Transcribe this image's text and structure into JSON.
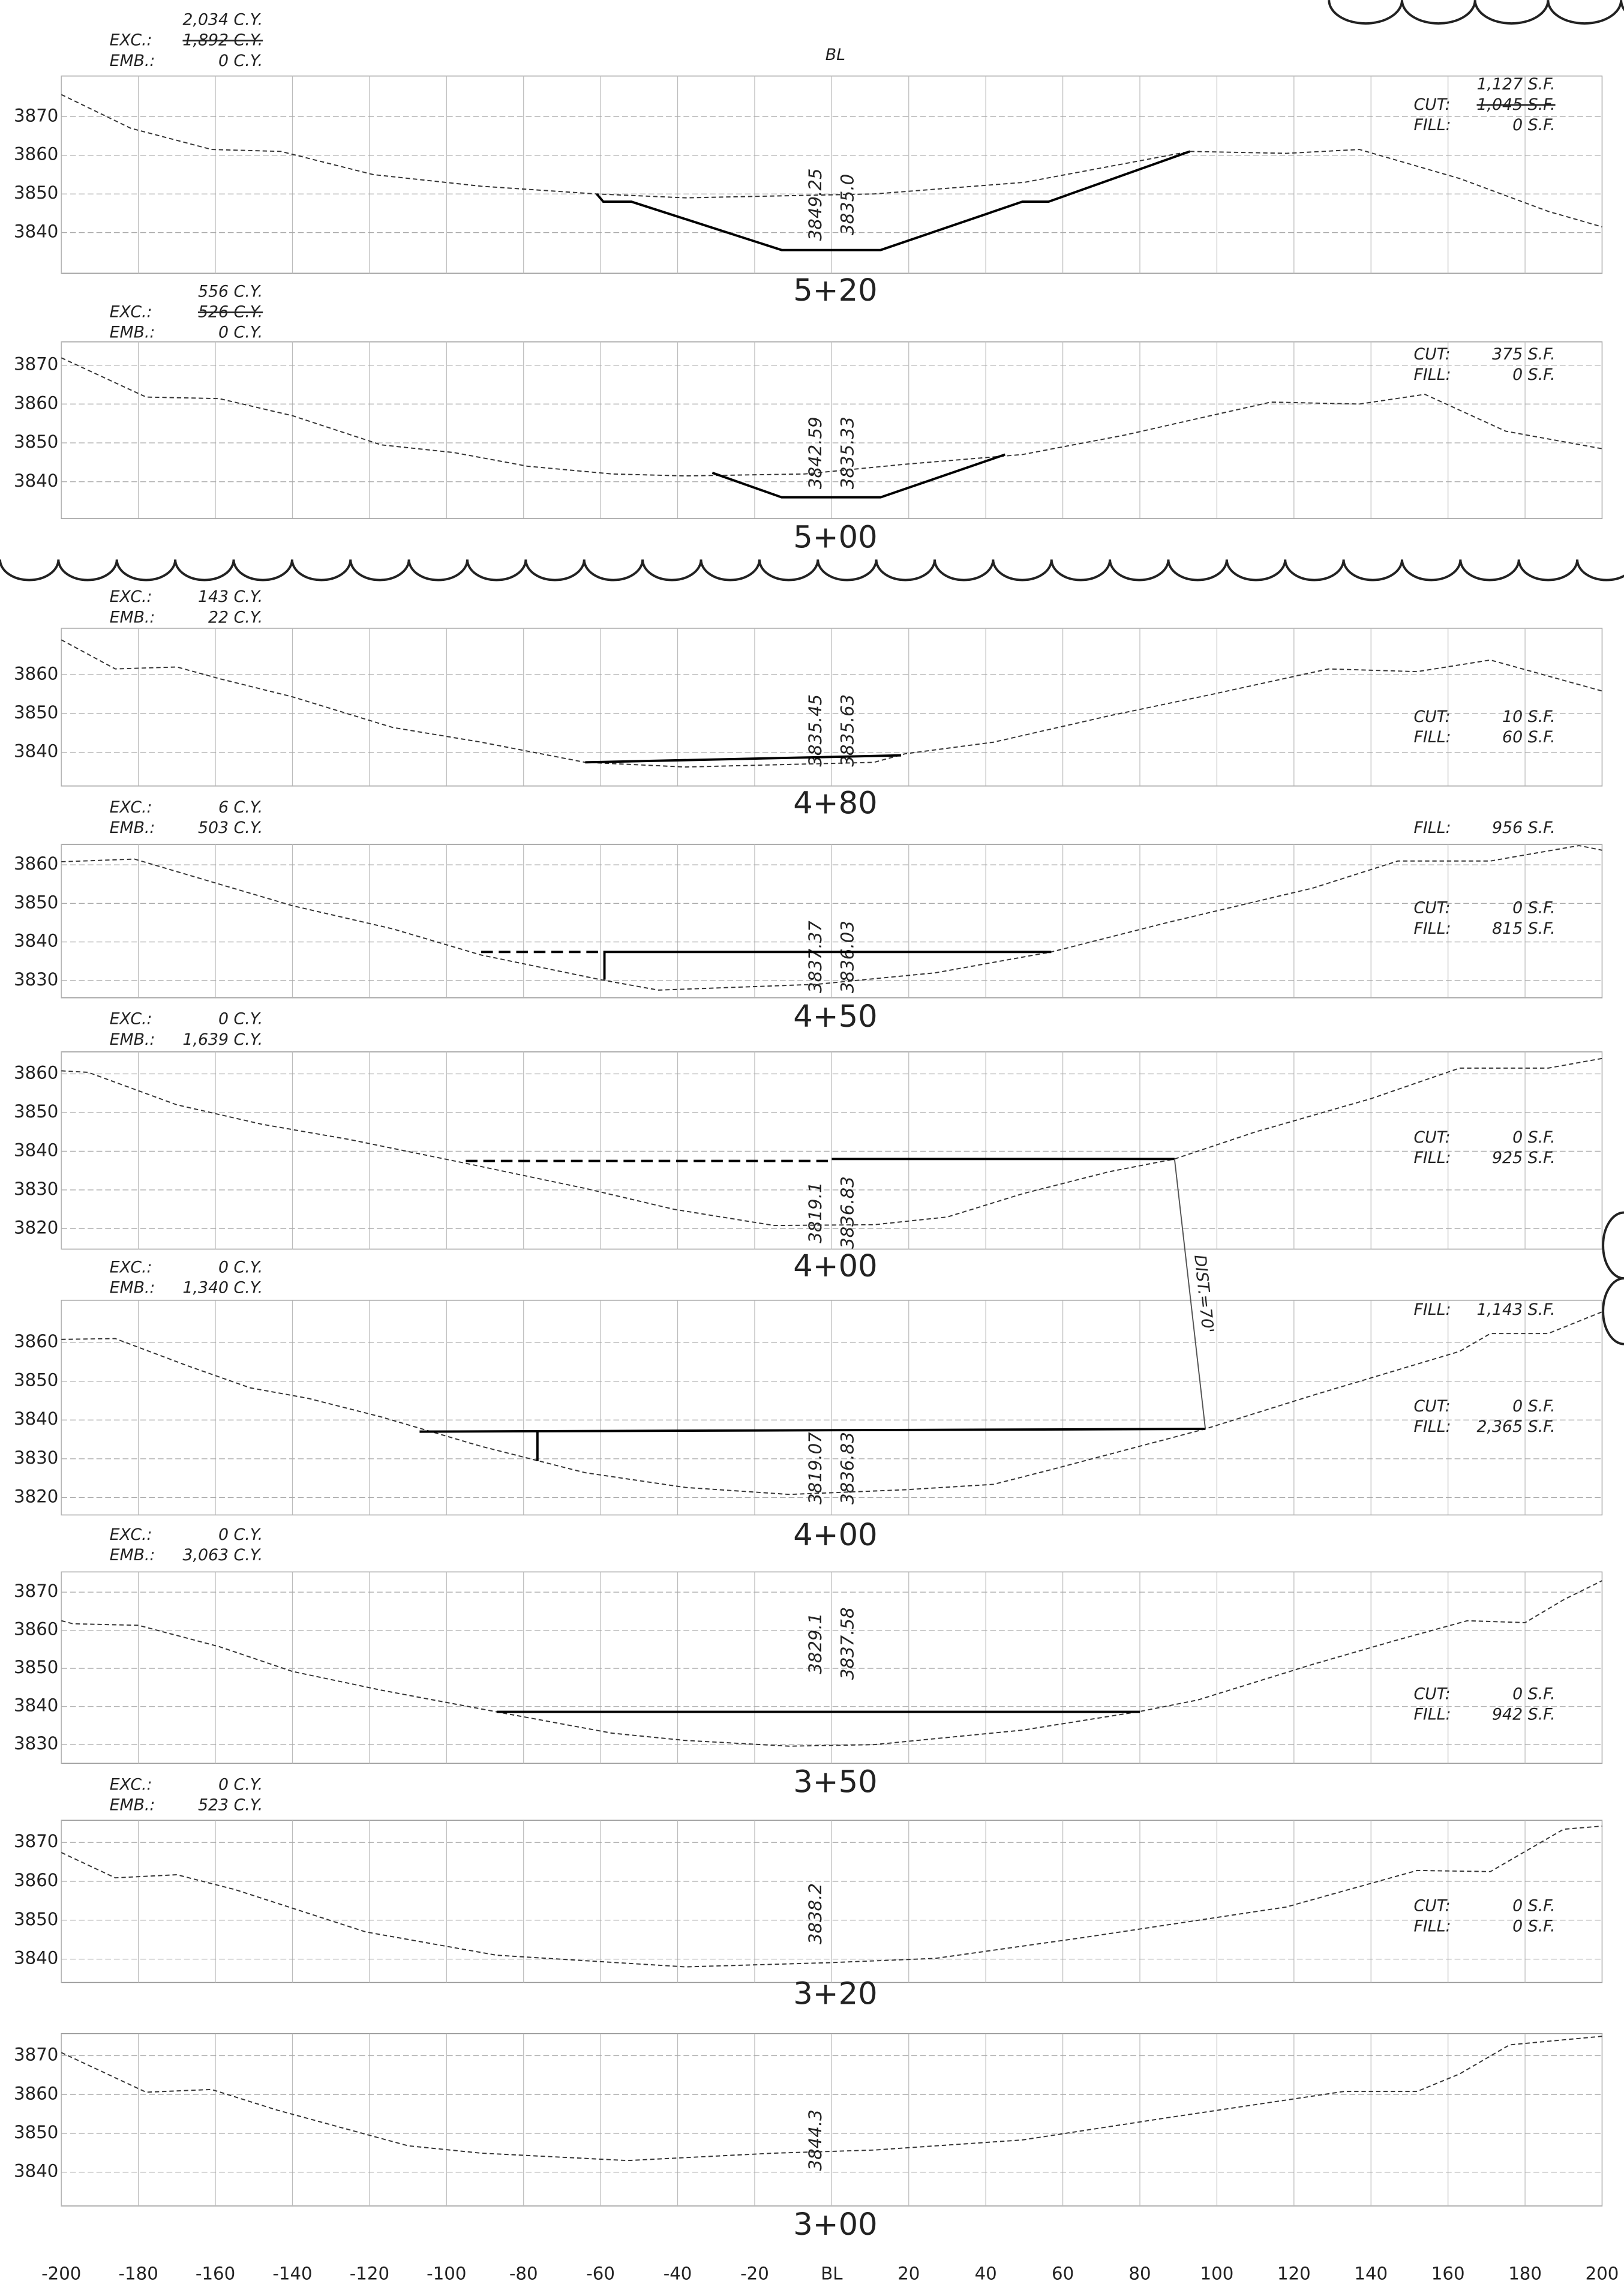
{
  "chart_data": [
    {
      "type": "line",
      "title": "5+20",
      "center_label": "BL",
      "xlim": [
        -200,
        200
      ],
      "ylim": [
        3829.5,
        3880.5
      ],
      "yticks": [
        3840,
        3850,
        3860,
        3870
      ],
      "left_notes": [
        {
          "value": "2,034 C.Y."
        },
        {
          "label": "EXC.:",
          "value": "1,892 C.Y.",
          "struck": true
        },
        {
          "label": "EMB.:",
          "value": "0 C.Y."
        }
      ],
      "right_notes": [
        {
          "value": "1,127 S.F."
        },
        {
          "label": "CUT:",
          "value": "1,045 S.F.",
          "struck": true
        },
        {
          "label": "FILL:",
          "value": "0 S.F."
        }
      ],
      "elevations": [
        "3849.25",
        "3835.0"
      ],
      "series": [
        {
          "dash": true,
          "color": "#333",
          "x": [
            -200,
            -182,
            -161,
            -143,
            -119,
            -91,
            -61,
            -38,
            11,
            50,
            93,
            118,
            137,
            163,
            186,
            200
          ],
          "values": [
            3875.7,
            3867,
            3861.5,
            3861,
            3855,
            3852,
            3850,
            3849,
            3850,
            3853,
            3861,
            3860.5,
            3861.5,
            3854,
            3845.5,
            3841.5
          ]
        },
        {
          "dash": false,
          "color": "#000",
          "x": [
            -61,
            -59.3,
            -52,
            -13,
            12.7,
            49.5,
            56.3,
            93
          ],
          "values": [
            3850,
            3848,
            3848,
            3835.5,
            3835.5,
            3848,
            3848,
            3861
          ]
        }
      ]
    },
    {
      "type": "line",
      "title": "5+00",
      "xlim": [
        -200,
        200
      ],
      "ylim": [
        3830.5,
        3876
      ],
      "yticks": [
        3840,
        3850,
        3860,
        3870
      ],
      "left_notes": [
        {
          "value": "556 C.Y."
        },
        {
          "label": "EXC.:",
          "value": "526 C.Y.",
          "struck": true
        },
        {
          "label": "EMB.:",
          "value": "0 C.Y."
        }
      ],
      "right_notes": [
        {
          "label": "CUT:",
          "value": "375 S.F."
        },
        {
          "label": "FILL:",
          "value": "0 S.F."
        }
      ],
      "elevations": [
        "3842.59",
        "3835.33"
      ],
      "series": [
        {
          "dash": true,
          "color": "#333",
          "x": [
            -200,
            -178,
            -159,
            -140,
            -117,
            -98,
            -79,
            -57,
            -38,
            -7,
            19,
            49.5,
            76,
            114,
            137,
            154,
            175,
            200
          ],
          "values": [
            3871.9,
            3861.8,
            3861.4,
            3857,
            3849.5,
            3847.5,
            3844,
            3842,
            3841.5,
            3842,
            3844.5,
            3847,
            3852,
            3860.5,
            3860,
            3862.5,
            3853,
            3848.5
          ]
        },
        {
          "dash": false,
          "color": "#000",
          "x": [
            -31,
            -13,
            12.7,
            45
          ],
          "values": [
            3842.3,
            3836,
            3836,
            3847
          ]
        }
      ]
    },
    {
      "type": "line",
      "title": "4+80",
      "xlim": [
        -200,
        200
      ],
      "ylim": [
        3831.3,
        3872
      ],
      "yticks": [
        3840,
        3850,
        3860
      ],
      "left_notes": [
        {
          "label": "EXC.:",
          "value": "143 C.Y."
        },
        {
          "label": "EMB.:",
          "value": "22 C.Y."
        }
      ],
      "right_notes": [
        {
          "label": "CUT:",
          "value": "10 S.F."
        },
        {
          "label": "FILL:",
          "value": "60 S.F."
        }
      ],
      "elevations": [
        "3835.45",
        "3835.63"
      ],
      "series": [
        {
          "dash": true,
          "color": "#333",
          "x": [
            -200,
            -186,
            -170,
            -159,
            -140,
            -114,
            -91,
            -64,
            -38,
            11,
            19,
            42,
            72,
            99,
            129,
            152,
            171,
            200
          ],
          "values": [
            3869,
            3861.5,
            3862,
            3859,
            3854.3,
            3846.4,
            3842.6,
            3837.4,
            3836.2,
            3837.4,
            3839.6,
            3842.6,
            3849.4,
            3855,
            3861.5,
            3860.8,
            3863.8,
            3855.8
          ]
        },
        {
          "dash": false,
          "color": "#000",
          "x": [
            -64,
            18
          ],
          "values": [
            3837.4,
            3839.2
          ]
        }
      ]
    },
    {
      "type": "line",
      "title": "4+50",
      "xlim": [
        -200,
        200
      ],
      "ylim": [
        3825.5,
        3865.3
      ],
      "yticks": [
        3830,
        3840,
        3850,
        3860
      ],
      "left_notes": [
        {
          "label": "EXC.:",
          "value": "6 C.Y."
        },
        {
          "label": "EMB.:",
          "value": "503 C.Y."
        }
      ],
      "right_notes": [
        {
          "label": "FILL:",
          "value": "956 S.F."
        },
        {
          "label": "CUT:",
          "value": "0 S.F."
        },
        {
          "label": "FILL:",
          "value": "815 S.F."
        }
      ],
      "elevations": [
        "3837.37",
        "3836.03"
      ],
      "series": [
        {
          "dash": true,
          "color": "#333",
          "x": [
            -200,
            -181,
            -159,
            -140,
            -114,
            -91,
            -60,
            -45,
            -4,
            27,
            57,
            87,
            125,
            147,
            171,
            194,
            200
          ],
          "values": [
            3860.8,
            3861.5,
            3855,
            3849.4,
            3843.4,
            3836.6,
            3830.2,
            3827.5,
            3829,
            3832,
            3837.4,
            3845,
            3854,
            3861,
            3861,
            3865,
            3863.8
          ]
        },
        {
          "dash": false,
          "color": "#000",
          "x": [
            -59,
            -59,
            57
          ],
          "values": [
            3830.2,
            3837.4,
            3837.4
          ]
        },
        {
          "dash": true,
          "long": true,
          "color": "#000",
          "x": [
            -91,
            -59
          ],
          "values": [
            3837.4,
            3837.4
          ]
        }
      ]
    },
    {
      "type": "line",
      "title": "4+00",
      "annotation": "DIST.=70'",
      "xlim": [
        -200,
        200
      ],
      "ylim": [
        3814.7,
        3865.7
      ],
      "yticks": [
        3820,
        3830,
        3840,
        3850,
        3860
      ],
      "left_notes": [
        {
          "label": "EXC.:",
          "value": "0 C.Y."
        },
        {
          "label": "EMB.:",
          "value": "1,639 C.Y."
        }
      ],
      "right_notes": [
        {
          "label": "CUT:",
          "value": "0 S.F."
        },
        {
          "label": "FILL:",
          "value": "925 S.F."
        }
      ],
      "elevations": [
        "3819.1",
        "3836.83"
      ],
      "series": [
        {
          "dash": true,
          "color": "#333",
          "x": [
            -200,
            -193,
            -170,
            -148,
            -125,
            -98,
            -64,
            -41,
            -15,
            11,
            30,
            49.5,
            72,
            89,
            110,
            140,
            163,
            186,
            200
          ],
          "values": [
            3860.8,
            3860.4,
            3852,
            3847,
            3843,
            3837.5,
            3830.4,
            3825,
            3820.8,
            3821,
            3823,
            3829,
            3834.7,
            3838,
            3845,
            3853.6,
            3861.5,
            3861.5,
            3864
          ]
        },
        {
          "dash": false,
          "color": "#000",
          "x": [
            0,
            89
          ],
          "values": [
            3838,
            3838
          ]
        },
        {
          "dash": true,
          "long": true,
          "color": "#000",
          "x": [
            -95,
            0
          ],
          "values": [
            3837.5,
            3837.5
          ]
        }
      ]
    },
    {
      "type": "line",
      "title": "4+00",
      "xlim": [
        -200,
        200
      ],
      "ylim": [
        3815.5,
        3870.9
      ],
      "yticks": [
        3820,
        3830,
        3840,
        3850,
        3860
      ],
      "left_notes": [
        {
          "label": "EXC.:",
          "value": "0 C.Y."
        },
        {
          "label": "EMB.:",
          "value": "1,340 C.Y."
        }
      ],
      "right_notes": [
        {
          "label": "FILL:",
          "value": "1,143 S.F."
        },
        {
          "label": "CUT:",
          "value": "0 S.F."
        },
        {
          "label": "FILL:",
          "value": "2,365 S.F."
        }
      ],
      "elevations": [
        "3819.07",
        "3836.83"
      ],
      "series": [
        {
          "dash": true,
          "color": "#333",
          "x": [
            -200,
            -186,
            -167,
            -151,
            -136,
            -117,
            -91,
            -64,
            -38,
            -11,
            19,
            42,
            57,
            97,
            125,
            163,
            171,
            186,
            200
          ],
          "values": [
            3860.8,
            3861,
            3853.9,
            3848.3,
            3845.6,
            3840.8,
            3833.2,
            3826.4,
            3822.6,
            3820.8,
            3822,
            3823.4,
            3827.2,
            3837.7,
            3846.4,
            3857.7,
            3862.3,
            3862.3,
            3867.9
          ]
        },
        {
          "dash": false,
          "color": "#000",
          "x": [
            -107,
            97
          ],
          "values": [
            3837,
            3837.7
          ]
        },
        {
          "dash": false,
          "color": "#000",
          "x": [
            -76.4,
            -76.4
          ],
          "values": [
            3837,
            3829.4
          ]
        }
      ]
    },
    {
      "type": "line",
      "title": "3+50",
      "xlim": [
        -200,
        200
      ],
      "ylim": [
        3825.1,
        3875.3
      ],
      "yticks": [
        3830,
        3840,
        3850,
        3860,
        3870
      ],
      "left_notes": [
        {
          "label": "EXC.:",
          "value": "0 C.Y."
        },
        {
          "label": "EMB.:",
          "value": "3,063 C.Y."
        }
      ],
      "right_notes": [
        {
          "label": "CUT:",
          "value": "0 S.F."
        },
        {
          "label": "FILL:",
          "value": "942 S.F."
        }
      ],
      "elevations": [
        "3829.1",
        "3837.58"
      ],
      "series": [
        {
          "dash": true,
          "color": "#333",
          "x": [
            -200,
            -197,
            -180,
            -159,
            -140,
            -117,
            -87,
            -57,
            -38,
            -11,
            11,
            49.5,
            80,
            95,
            125,
            147,
            165,
            180,
            190,
            200
          ],
          "values": [
            3862.5,
            3861.7,
            3861.3,
            3855.7,
            3849.2,
            3844.3,
            3838.6,
            3833,
            3831.1,
            3829.6,
            3830,
            3833.8,
            3838.7,
            3841.7,
            3851.1,
            3857.5,
            3862.5,
            3862,
            3868,
            3873
          ]
        },
        {
          "dash": false,
          "color": "#000",
          "x": [
            -87,
            80
          ],
          "values": [
            3838.6,
            3838.6
          ]
        }
      ]
    },
    {
      "type": "line",
      "title": "3+20",
      "xlim": [
        -200,
        200
      ],
      "ylim": [
        3834,
        3875.7
      ],
      "yticks": [
        3840,
        3850,
        3860,
        3870
      ],
      "left_notes": [
        {
          "label": "EXC.:",
          "value": "0 C.Y."
        },
        {
          "label": "EMB.:",
          "value": "523 C.Y."
        }
      ],
      "right_notes": [
        {
          "label": "CUT:",
          "value": "0 S.F."
        },
        {
          "label": "FILL:",
          "value": "0 S.F."
        }
      ],
      "elevations": [
        "3838.2"
      ],
      "series": [
        {
          "dash": true,
          "color": "#333",
          "x": [
            -200,
            -186,
            -170,
            -155,
            -121,
            -87,
            -38,
            0,
            27,
            65,
            118,
            152,
            171,
            190,
            200
          ],
          "values": [
            3867.4,
            3860.9,
            3861.7,
            3857.9,
            3847,
            3841,
            3838,
            3839.1,
            3840.2,
            3845.5,
            3853.4,
            3862.8,
            3862.5,
            3873.4,
            3874.2
          ]
        }
      ]
    },
    {
      "type": "line",
      "title": "3+00",
      "xlim": [
        -200,
        200
      ],
      "ylim": [
        3831.3,
        3875.7
      ],
      "yticks": [
        3840,
        3850,
        3860,
        3870
      ],
      "xticks": [
        -200,
        -180,
        -160,
        -140,
        -120,
        -100,
        -80,
        -60,
        -40,
        -20,
        {
          "value": 0,
          "label": "BL"
        },
        20,
        40,
        60,
        80,
        100,
        120,
        140,
        160,
        180,
        200
      ],
      "elevations": [
        "3844.3"
      ],
      "series": [
        {
          "dash": true,
          "color": "#333",
          "x": [
            -200,
            -178,
            -161,
            -144,
            -110,
            -91,
            -53,
            -15,
            11,
            49.5,
            87,
            133,
            152,
            163,
            176,
            200
          ],
          "values": [
            3870.8,
            3860.6,
            3861.3,
            3856,
            3846.8,
            3844.9,
            3843,
            3844.9,
            3845.7,
            3848.3,
            3854,
            3860.8,
            3860.8,
            3865.3,
            3872.8,
            3875
          ]
        }
      ]
    }
  ]
}
